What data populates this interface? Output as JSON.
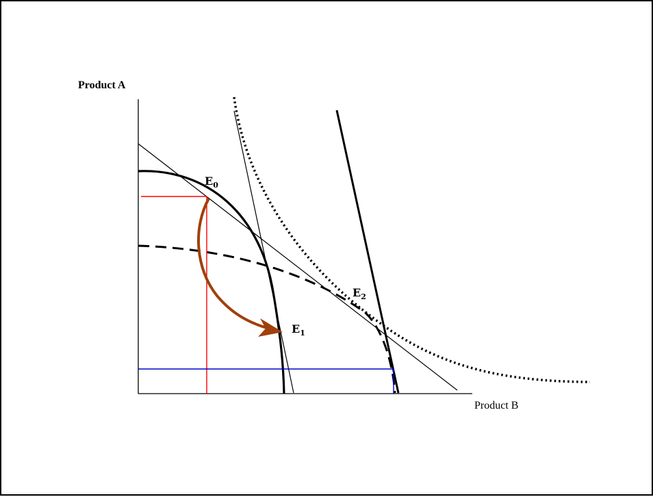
{
  "diagram": {
    "y_axis_label": "Product A",
    "x_axis_label": "Product B",
    "points": [
      {
        "id": "E0",
        "letter": "E",
        "subscript": "0"
      },
      {
        "id": "E1",
        "letter": "E",
        "subscript": "1"
      },
      {
        "id": "E2",
        "letter": "E",
        "subscript": "2"
      }
    ],
    "colors": {
      "axes": "#000000",
      "curves": "#000000",
      "red_projection": "#ff0000",
      "blue_projection": "#0000cc",
      "arrow": "#a0400c"
    }
  }
}
